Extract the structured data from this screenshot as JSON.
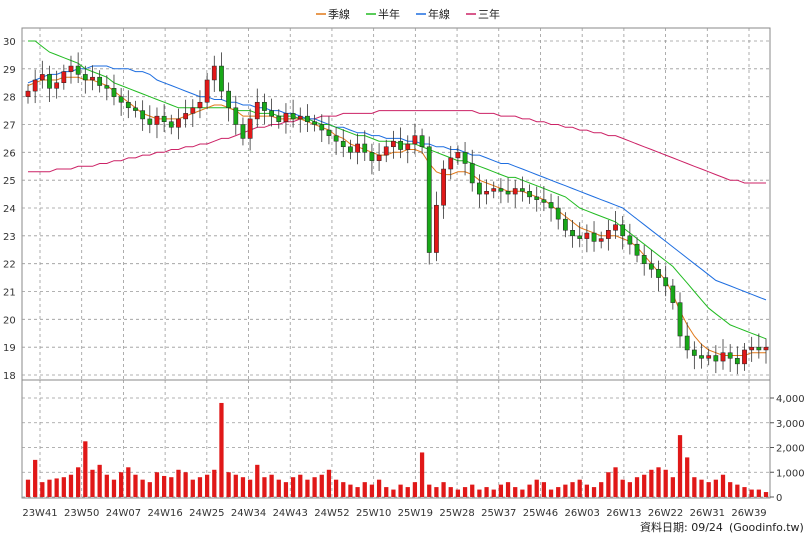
{
  "chart_data": {
    "type": "candlestick",
    "legend": [
      {
        "label": "季線",
        "color": "#e07818"
      },
      {
        "label": "半年",
        "color": "#22bb22"
      },
      {
        "label": "年線",
        "color": "#1e6ee0"
      },
      {
        "label": "三年",
        "color": "#cc2266"
      }
    ],
    "price_axis": {
      "min": 18,
      "max": 30,
      "ticks": [
        "18",
        "19",
        "20",
        "21",
        "22",
        "23",
        "24",
        "25",
        "26",
        "27",
        "28",
        "29",
        "30"
      ]
    },
    "volume_axis": {
      "min": 0,
      "max": 4000,
      "ticks": [
        "0",
        "1,000",
        "2,000",
        "3,000",
        "4,000"
      ]
    },
    "x_ticks": [
      "23W41",
      "23W50",
      "24W07",
      "24W16",
      "24W25",
      "24W34",
      "24W43",
      "24W52",
      "25W10",
      "25W19",
      "25W28",
      "25W37",
      "25W46",
      "26W03",
      "26W13",
      "26W22",
      "26W31",
      "26W39"
    ],
    "grid": true,
    "legend_position": "top-center",
    "candle_colors": {
      "up": "#e01818",
      "down": "#18a818"
    },
    "volume_color": "#e01818",
    "close_series_weekly": [
      28.2,
      28.6,
      28.8,
      28.3,
      28.5,
      28.9,
      29.1,
      28.8,
      28.6,
      28.7,
      28.4,
      28.3,
      28.0,
      27.8,
      27.6,
      27.5,
      27.2,
      27.0,
      27.3,
      27.1,
      26.9,
      27.2,
      27.4,
      27.6,
      27.8,
      28.6,
      29.1,
      28.2,
      27.6,
      27.0,
      26.5,
      27.2,
      27.8,
      27.5,
      27.3,
      27.1,
      27.4,
      27.2,
      27.3,
      27.1,
      27.0,
      26.8,
      26.6,
      26.4,
      26.2,
      26.0,
      26.3,
      26.0,
      25.7,
      25.9,
      26.2,
      26.4,
      26.1,
      26.3,
      26.6,
      26.2,
      22.4,
      24.1,
      25.4,
      25.8,
      26.0,
      25.6,
      24.9,
      24.5,
      24.6,
      24.7,
      24.6,
      24.5,
      24.7,
      24.6,
      24.4,
      24.3,
      24.2,
      24.0,
      23.6,
      23.2,
      23.0,
      22.9,
      23.1,
      22.8,
      22.9,
      23.2,
      23.4,
      23.0,
      22.7,
      22.3,
      22.0,
      21.8,
      21.5,
      21.2,
      20.6,
      19.4,
      18.9,
      18.7,
      18.6,
      18.7,
      18.5,
      18.8,
      18.6,
      18.4,
      18.9,
      19.0,
      18.9,
      19.0
    ],
    "volume_series_weekly": [
      700,
      1500,
      600,
      700,
      750,
      800,
      900,
      1200,
      2250,
      1100,
      1300,
      900,
      700,
      1000,
      1200,
      900,
      700,
      600,
      1000,
      850,
      800,
      1100,
      1000,
      700,
      800,
      900,
      1100,
      3800,
      1000,
      900,
      800,
      700,
      1300,
      800,
      900,
      700,
      600,
      800,
      900,
      700,
      800,
      900,
      1100,
      700,
      600,
      500,
      400,
      600,
      500,
      700,
      400,
      300,
      500,
      400,
      600,
      1800,
      500,
      400,
      600,
      400,
      300,
      400,
      500,
      300,
      400,
      300,
      500,
      600,
      400,
      300,
      500,
      700,
      600,
      300,
      400,
      500,
      600,
      700,
      500,
      400,
      600,
      1000,
      1200,
      700,
      600,
      800,
      900,
      1100,
      1200,
      1100,
      800,
      2500,
      1600,
      800,
      700,
      600,
      700,
      900,
      600,
      500,
      400,
      300,
      300,
      200
    ],
    "ma_quarter": [
      28.4,
      28.5,
      28.6,
      28.6,
      28.6,
      28.7,
      28.7,
      28.7,
      28.6,
      28.6,
      28.5,
      28.4,
      28.2,
      28.0,
      27.8,
      27.6,
      27.4,
      27.3,
      27.2,
      27.2,
      27.2,
      27.2,
      27.3,
      27.4,
      27.5,
      27.6,
      27.7,
      27.7,
      27.6,
      27.5,
      27.3,
      27.3,
      27.3,
      27.3,
      27.3,
      27.2,
      27.2,
      27.2,
      27.2,
      27.1,
      27.0,
      26.9,
      26.8,
      26.6,
      26.5,
      26.3,
      26.2,
      26.1,
      26.0,
      25.9,
      25.9,
      26.0,
      26.0,
      26.1,
      26.1,
      26.0,
      25.6,
      25.3,
      25.2,
      25.2,
      25.3,
      25.3,
      25.2,
      25.0,
      24.9,
      24.8,
      24.7,
      24.6,
      24.6,
      24.6,
      24.5,
      24.4,
      24.3,
      24.1,
      23.9,
      23.7,
      23.5,
      23.3,
      23.2,
      23.1,
      23.0,
      23.0,
      23.0,
      22.9,
      22.8,
      22.6,
      22.3,
      22.0,
      21.7,
      21.4,
      20.9,
      20.3,
      19.8,
      19.4,
      19.1,
      18.9,
      18.8,
      18.7,
      18.7,
      18.7,
      18.7,
      18.8,
      18.8,
      18.8
    ],
    "ma_half": [
      30.0,
      30.0,
      29.8,
      29.6,
      29.5,
      29.4,
      29.3,
      29.2,
      29.0,
      28.9,
      28.8,
      28.7,
      28.5,
      28.4,
      28.3,
      28.2,
      28.1,
      28.0,
      27.9,
      27.8,
      27.7,
      27.6,
      27.6,
      27.6,
      27.6,
      27.6,
      27.6,
      27.6,
      27.6,
      27.5,
      27.5,
      27.5,
      27.4,
      27.4,
      27.4,
      27.3,
      27.3,
      27.3,
      27.2,
      27.2,
      27.1,
      27.0,
      27.0,
      26.9,
      26.8,
      26.7,
      26.6,
      26.6,
      26.5,
      26.4,
      26.4,
      26.4,
      26.3,
      26.3,
      26.3,
      26.2,
      26.1,
      26.0,
      25.9,
      25.8,
      25.7,
      25.7,
      25.6,
      25.5,
      25.4,
      25.3,
      25.2,
      25.1,
      25.1,
      25.0,
      24.9,
      24.8,
      24.7,
      24.6,
      24.5,
      24.4,
      24.2,
      24.0,
      23.9,
      23.8,
      23.7,
      23.6,
      23.5,
      23.3,
      23.1,
      22.9,
      22.7,
      22.5,
      22.3,
      22.1,
      21.9,
      21.6,
      21.3,
      21.0,
      20.7,
      20.4,
      20.2,
      20.0,
      19.8,
      19.7,
      19.6,
      19.5,
      19.4,
      19.3
    ],
    "ma_year": [
      28.5,
      28.6,
      28.7,
      28.8,
      28.8,
      28.9,
      28.9,
      29.0,
      29.0,
      29.1,
      29.1,
      29.1,
      29.0,
      29.0,
      29.0,
      28.9,
      28.9,
      28.8,
      28.6,
      28.5,
      28.4,
      28.3,
      28.2,
      28.1,
      28.0,
      28.0,
      27.9,
      27.9,
      27.8,
      27.8,
      27.7,
      27.7,
      27.6,
      27.6,
      27.5,
      27.5,
      27.4,
      27.4,
      27.3,
      27.2,
      27.2,
      27.1,
      27.0,
      26.9,
      26.9,
      26.8,
      26.7,
      26.7,
      26.6,
      26.6,
      26.5,
      26.5,
      26.5,
      26.4,
      26.4,
      26.3,
      26.3,
      26.2,
      26.2,
      26.1,
      26.1,
      26.0,
      25.9,
      25.9,
      25.8,
      25.7,
      25.6,
      25.6,
      25.5,
      25.4,
      25.3,
      25.2,
      25.1,
      25.0,
      24.9,
      24.8,
      24.7,
      24.6,
      24.5,
      24.4,
      24.3,
      24.2,
      24.1,
      24.0,
      23.8,
      23.6,
      23.4,
      23.2,
      23.0,
      22.8,
      22.6,
      22.4,
      22.2,
      22.0,
      21.8,
      21.6,
      21.4,
      21.3,
      21.2,
      21.1,
      21.0,
      20.9,
      20.8,
      20.7
    ],
    "ma_3year": [
      25.3,
      25.3,
      25.3,
      25.3,
      25.4,
      25.4,
      25.4,
      25.5,
      25.5,
      25.5,
      25.6,
      25.6,
      25.7,
      25.7,
      25.8,
      25.8,
      25.9,
      25.9,
      26.0,
      26.0,
      26.1,
      26.1,
      26.2,
      26.2,
      26.3,
      26.3,
      26.4,
      26.5,
      26.5,
      26.6,
      26.7,
      26.8,
      26.9,
      26.9,
      27.0,
      27.0,
      27.1,
      27.1,
      27.2,
      27.2,
      27.2,
      27.3,
      27.3,
      27.3,
      27.4,
      27.4,
      27.4,
      27.4,
      27.4,
      27.5,
      27.5,
      27.5,
      27.5,
      27.5,
      27.5,
      27.5,
      27.5,
      27.5,
      27.5,
      27.5,
      27.5,
      27.5,
      27.5,
      27.4,
      27.4,
      27.4,
      27.3,
      27.3,
      27.3,
      27.2,
      27.2,
      27.1,
      27.1,
      27.0,
      27.0,
      26.9,
      26.9,
      26.8,
      26.8,
      26.7,
      26.7,
      26.6,
      26.6,
      26.5,
      26.4,
      26.3,
      26.2,
      26.1,
      26.0,
      25.9,
      25.8,
      25.7,
      25.6,
      25.5,
      25.4,
      25.3,
      25.2,
      25.1,
      25.0,
      25.0,
      24.9,
      24.9,
      24.9,
      24.9
    ]
  },
  "footer": {
    "date_label": "資料日期: 09/24",
    "source_label": "(Goodinfo.tw)"
  }
}
